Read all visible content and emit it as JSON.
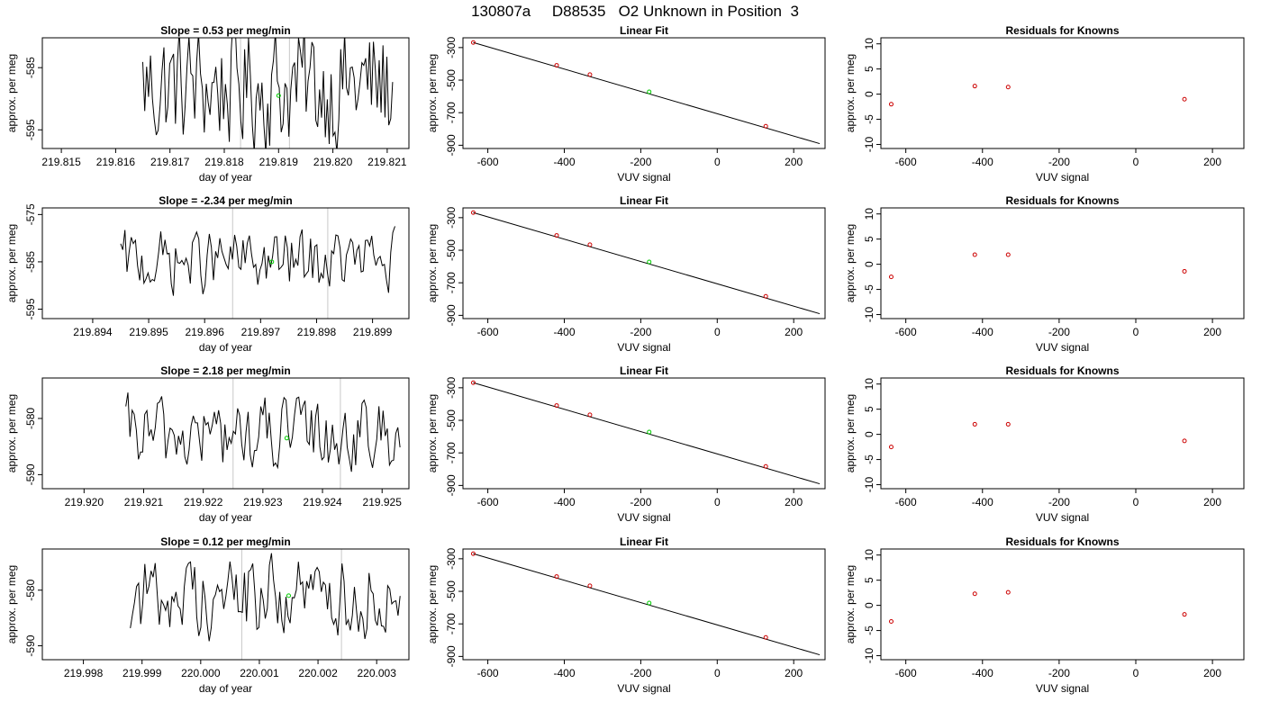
{
  "page_title": "130807a     D88535   O2 Unknown in Position  3",
  "colors": {
    "trace": "#000000",
    "highlight": "#00cc00",
    "known_points": "#cc0000",
    "fit_line": "#000000",
    "box": "#000000",
    "vlines": "#c8c8c8"
  },
  "chart_data": [
    {
      "type": "line",
      "row": 0,
      "col": 0,
      "title": "Slope =  0.53  per meg/min",
      "xlabel": "day of year",
      "ylabel": "approx. per meg",
      "xlim": [
        219.81465,
        219.8214
      ],
      "ylim": [
        -598,
        -580.2
      ],
      "xticks": [
        219.815,
        219.816,
        219.817,
        219.818,
        219.819,
        219.82,
        219.821
      ],
      "xtick_labels": [
        "219.815",
        "219.816",
        "219.817",
        "219.818",
        "219.819",
        "219.820",
        "219.821"
      ],
      "yticks": [
        -585,
        -595
      ],
      "ytick_labels": [
        "-585",
        "-595"
      ],
      "series_start": 219.8165,
      "series_end": 219.8211,
      "series_center": -588,
      "series_amp": 14,
      "vlines": [
        219.8183,
        219.8192
      ],
      "highlight_point": {
        "x": 219.819,
        "y": -589.5
      }
    },
    {
      "type": "scatter",
      "row": 0,
      "col": 1,
      "title": "Linear Fit",
      "xlabel": "VUV signal",
      "ylabel": "approx. per meg",
      "xlim": [
        -665,
        282
      ],
      "ylim": [
        -920,
        -240
      ],
      "xticks": [
        -600,
        -400,
        -200,
        0,
        200
      ],
      "xtick_labels": [
        "-600",
        "-400",
        "-200",
        "0",
        "200"
      ],
      "yticks": [
        -300,
        -500,
        -700,
        -900
      ],
      "ytick_labels": [
        "-300",
        "-500",
        "-700",
        "-900"
      ],
      "known_points": [
        [
          -638,
          -269
        ],
        [
          -420,
          -409
        ],
        [
          -333,
          -466
        ],
        [
          127,
          -783
        ]
      ],
      "unknown_point": [
        -178,
        -572
      ],
      "fit_line": [
        [
          -638,
          -269
        ],
        [
          268,
          -890
        ]
      ]
    },
    {
      "type": "scatter",
      "row": 0,
      "col": 2,
      "title": "Residuals for Knowns",
      "xlabel": "VUV signal",
      "ylabel": "approx. per meg",
      "xlim": [
        -665,
        282
      ],
      "ylim": [
        -10.8,
        11.2
      ],
      "xticks": [
        -600,
        -400,
        -200,
        0,
        200
      ],
      "xtick_labels": [
        "-600",
        "-400",
        "-200",
        "0",
        "200"
      ],
      "yticks": [
        10,
        5,
        0,
        -5,
        -10
      ],
      "ytick_labels": [
        "10",
        "5",
        "0",
        "-5",
        "-10"
      ],
      "points": [
        [
          -638,
          -2.0
        ],
        [
          -420,
          1.6
        ],
        [
          -333,
          1.4
        ],
        [
          127,
          -1.0
        ]
      ]
    },
    {
      "type": "line",
      "row": 1,
      "col": 0,
      "title": "Slope =  -2.34  per meg/min",
      "xlabel": "day of year",
      "ylabel": "approx. per meg",
      "xlim": [
        219.8931,
        219.89965
      ],
      "ylim": [
        -597,
        -573.6
      ],
      "xticks": [
        219.894,
        219.895,
        219.896,
        219.897,
        219.898,
        219.899
      ],
      "xtick_labels": [
        "219.894",
        "219.895",
        "219.896",
        "219.897",
        "219.898",
        "219.899"
      ],
      "yticks": [
        -575,
        -585,
        -595
      ],
      "ytick_labels": [
        "-575",
        "-585",
        "-595"
      ],
      "series_start": 219.8945,
      "series_end": 219.8994,
      "series_center": -585,
      "series_amp": 9,
      "vlines": [
        219.8965,
        219.8982
      ],
      "highlight_point": {
        "x": 219.8972,
        "y": -585
      }
    },
    {
      "type": "scatter",
      "row": 1,
      "col": 1,
      "title": "Linear Fit",
      "xlabel": "VUV signal",
      "ylabel": "approx. per meg",
      "xlim": [
        -665,
        282
      ],
      "ylim": [
        -920,
        -240
      ],
      "xticks": [
        -600,
        -400,
        -200,
        0,
        200
      ],
      "xtick_labels": [
        "-600",
        "-400",
        "-200",
        "0",
        "200"
      ],
      "yticks": [
        -300,
        -500,
        -700,
        -900
      ],
      "ytick_labels": [
        "-300",
        "-500",
        "-700",
        "-900"
      ],
      "known_points": [
        [
          -638,
          -269
        ],
        [
          -420,
          -409
        ],
        [
          -333,
          -466
        ],
        [
          127,
          -783
        ]
      ],
      "unknown_point": [
        -178,
        -572
      ],
      "fit_line": [
        [
          -638,
          -269
        ],
        [
          268,
          -890
        ]
      ]
    },
    {
      "type": "scatter",
      "row": 1,
      "col": 2,
      "title": "Residuals for Knowns",
      "xlabel": "VUV signal",
      "ylabel": "approx. per meg",
      "xlim": [
        -665,
        282
      ],
      "ylim": [
        -10.8,
        11.2
      ],
      "xticks": [
        -600,
        -400,
        -200,
        0,
        200
      ],
      "xtick_labels": [
        "-600",
        "-400",
        "-200",
        "0",
        "200"
      ],
      "yticks": [
        10,
        5,
        0,
        -5,
        -10
      ],
      "ytick_labels": [
        "10",
        "5",
        "0",
        "-5",
        "-10"
      ],
      "points": [
        [
          -638,
          -2.5
        ],
        [
          -420,
          1.9
        ],
        [
          -333,
          1.9
        ],
        [
          127,
          -1.4
        ]
      ]
    },
    {
      "type": "line",
      "row": 2,
      "col": 0,
      "title": "Slope =  2.18  per meg/min",
      "xlabel": "day of year",
      "ylabel": "approx. per meg",
      "xlim": [
        219.9193,
        219.92545
      ],
      "ylim": [
        -592.5,
        -572.8
      ],
      "xticks": [
        219.92,
        219.921,
        219.922,
        219.923,
        219.924,
        219.925
      ],
      "xtick_labels": [
        "219.920",
        "219.921",
        "219.922",
        "219.923",
        "219.924",
        "219.925"
      ],
      "yticks": [
        -580,
        -590
      ],
      "ytick_labels": [
        "-580",
        "-590"
      ],
      "series_start": 219.9207,
      "series_end": 219.9253,
      "series_center": -583,
      "series_amp": 9,
      "vlines": [
        219.9225,
        219.9243
      ],
      "highlight_point": {
        "x": 219.9234,
        "y": -583.5
      }
    },
    {
      "type": "scatter",
      "row": 2,
      "col": 1,
      "title": "Linear Fit",
      "xlabel": "VUV signal",
      "ylabel": "approx. per meg",
      "xlim": [
        -665,
        282
      ],
      "ylim": [
        -920,
        -240
      ],
      "xticks": [
        -600,
        -400,
        -200,
        0,
        200
      ],
      "xtick_labels": [
        "-600",
        "-400",
        "-200",
        "0",
        "200"
      ],
      "yticks": [
        -300,
        -500,
        -700,
        -900
      ],
      "ytick_labels": [
        "-300",
        "-500",
        "-700",
        "-900"
      ],
      "known_points": [
        [
          -638,
          -269
        ],
        [
          -420,
          -409
        ],
        [
          -333,
          -466
        ],
        [
          127,
          -783
        ]
      ],
      "unknown_point": [
        -178,
        -572
      ],
      "fit_line": [
        [
          -638,
          -269
        ],
        [
          268,
          -890
        ]
      ]
    },
    {
      "type": "scatter",
      "row": 2,
      "col": 2,
      "title": "Residuals for Knowns",
      "xlabel": "VUV signal",
      "ylabel": "approx. per meg",
      "xlim": [
        -665,
        282
      ],
      "ylim": [
        -10.8,
        11.2
      ],
      "xticks": [
        -600,
        -400,
        -200,
        0,
        200
      ],
      "xtick_labels": [
        "-600",
        "-400",
        "-200",
        "0",
        "200"
      ],
      "yticks": [
        10,
        5,
        0,
        -5,
        -10
      ],
      "ytick_labels": [
        "10",
        "5",
        "0",
        "-5",
        "-10"
      ],
      "points": [
        [
          -638,
          -2.5
        ],
        [
          -420,
          2.0
        ],
        [
          -333,
          2.0
        ],
        [
          127,
          -1.3
        ]
      ]
    },
    {
      "type": "line",
      "row": 3,
      "col": 0,
      "title": "Slope =  0.12  per meg/min",
      "xlabel": "day of year",
      "ylabel": "approx. per meg",
      "xlim": [
        219.9973,
        220.00355
      ],
      "ylim": [
        -592.5,
        -572.6
      ],
      "xticks": [
        219.998,
        219.999,
        220.0,
        220.001,
        220.002,
        220.003
      ],
      "xtick_labels": [
        "219.998",
        "219.999",
        "220.000",
        "220.001",
        "220.002",
        "220.003"
      ],
      "yticks": [
        -580,
        -590
      ],
      "ytick_labels": [
        "-580",
        "-590"
      ],
      "series_start": 219.9988,
      "series_end": 220.0034,
      "series_center": -581,
      "series_amp": 10,
      "vlines": [
        220.0007,
        220.0024
      ],
      "highlight_point": {
        "x": 220.0015,
        "y": -581
      }
    },
    {
      "type": "scatter",
      "row": 3,
      "col": 1,
      "title": "Linear Fit",
      "xlabel": "VUV signal",
      "ylabel": "approx. per meg",
      "xlim": [
        -665,
        282
      ],
      "ylim": [
        -920,
        -240
      ],
      "xticks": [
        -600,
        -400,
        -200,
        0,
        200
      ],
      "xtick_labels": [
        "-600",
        "-400",
        "-200",
        "0",
        "200"
      ],
      "yticks": [
        -300,
        -500,
        -700,
        -900
      ],
      "ytick_labels": [
        "-300",
        "-500",
        "-700",
        "-900"
      ],
      "known_points": [
        [
          -638,
          -269
        ],
        [
          -420,
          -409
        ],
        [
          -333,
          -466
        ],
        [
          127,
          -783
        ]
      ],
      "unknown_point": [
        -178,
        -572
      ],
      "fit_line": [
        [
          -638,
          -269
        ],
        [
          268,
          -890
        ]
      ]
    },
    {
      "type": "scatter",
      "row": 3,
      "col": 2,
      "title": "Residuals for Knowns",
      "xlabel": "VUV signal",
      "ylabel": "approx. per meg",
      "xlim": [
        -665,
        282
      ],
      "ylim": [
        -10.8,
        11.2
      ],
      "xticks": [
        -600,
        -400,
        -200,
        0,
        200
      ],
      "xtick_labels": [
        "-600",
        "-400",
        "-200",
        "0",
        "200"
      ],
      "yticks": [
        10,
        5,
        0,
        -5,
        -10
      ],
      "ytick_labels": [
        "10",
        "5",
        "0",
        "-5",
        "-10"
      ],
      "points": [
        [
          -638,
          -3.2
        ],
        [
          -420,
          2.3
        ],
        [
          -333,
          2.6
        ],
        [
          127,
          -1.8
        ]
      ]
    }
  ]
}
